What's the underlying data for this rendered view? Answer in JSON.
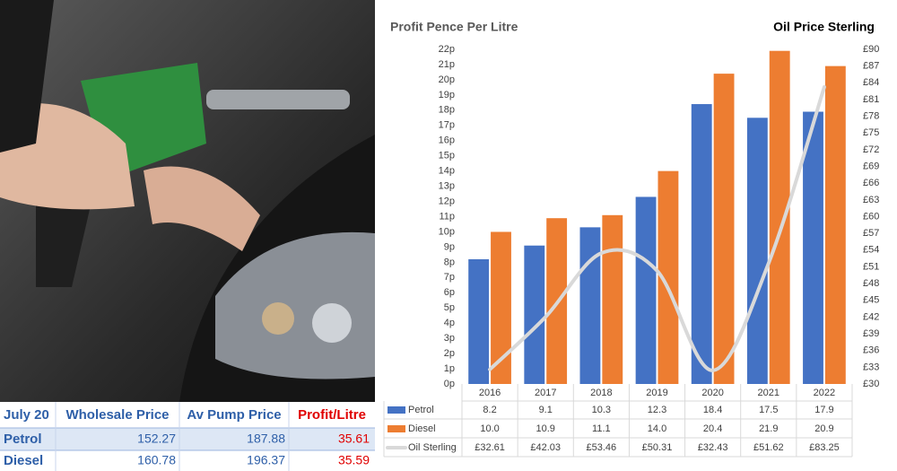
{
  "chart_data": {
    "type": "bar",
    "title": "Profit Pence Per Litre",
    "y2_title": "Oil Price Sterling",
    "categories": [
      "2016",
      "2017",
      "2018",
      "2019",
      "2020",
      "2021",
      "2022"
    ],
    "series": [
      {
        "name": "Petrol",
        "color": "#4472c4",
        "values": [
          8.2,
          9.1,
          10.3,
          12.3,
          18.4,
          17.5,
          17.9
        ],
        "value_labels": [
          "8.2",
          "9.1",
          "10.3",
          "12.3",
          "18.4",
          "17.5",
          "17.9"
        ]
      },
      {
        "name": "Diesel",
        "color": "#ed7d31",
        "values": [
          10.0,
          10.9,
          11.1,
          14.0,
          20.4,
          21.9,
          20.9
        ],
        "value_labels": [
          "10.0",
          "10.9",
          "11.1",
          "14.0",
          "20.4",
          "21.9",
          "20.9"
        ]
      },
      {
        "name": "Oil Sterling",
        "color": "#d9d9d9",
        "type": "line",
        "axis": "y2",
        "values": [
          32.61,
          42.03,
          53.46,
          50.31,
          32.43,
          51.62,
          83.25
        ],
        "value_labels": [
          "£32.61",
          "£42.03",
          "£53.46",
          "£50.31",
          "£32.43",
          "£51.62",
          "£83.25"
        ]
      }
    ],
    "ylim": [
      0,
      22
    ],
    "yticks": [
      {
        "value": 0,
        "label": "0p"
      },
      {
        "value": 1,
        "label": "1p"
      },
      {
        "value": 2,
        "label": "2p"
      },
      {
        "value": 3,
        "label": "3p"
      },
      {
        "value": 4,
        "label": "4p"
      },
      {
        "value": 5,
        "label": "5p"
      },
      {
        "value": 6,
        "label": "6p"
      },
      {
        "value": 7,
        "label": "7p"
      },
      {
        "value": 8,
        "label": "8p"
      },
      {
        "value": 9,
        "label": "9p"
      },
      {
        "value": 10,
        "label": "10p"
      },
      {
        "value": 11,
        "label": "11p"
      },
      {
        "value": 12,
        "label": "12p"
      },
      {
        "value": 13,
        "label": "13p"
      },
      {
        "value": 14,
        "label": "14p"
      },
      {
        "value": 15,
        "label": "15p"
      },
      {
        "value": 16,
        "label": "16p"
      },
      {
        "value": 17,
        "label": "17p"
      },
      {
        "value": 18,
        "label": "18p"
      },
      {
        "value": 19,
        "label": "19p"
      },
      {
        "value": 20,
        "label": "20p"
      },
      {
        "value": 21,
        "label": "21p"
      },
      {
        "value": 22,
        "label": "22p"
      }
    ],
    "y2lim": [
      30,
      90
    ],
    "y2ticks": [
      {
        "value": 30,
        "label": "£30"
      },
      {
        "value": 33,
        "label": "£33"
      },
      {
        "value": 36,
        "label": "£36"
      },
      {
        "value": 39,
        "label": "£39"
      },
      {
        "value": 42,
        "label": "£42"
      },
      {
        "value": 45,
        "label": "£45"
      },
      {
        "value": 48,
        "label": "£48"
      },
      {
        "value": 51,
        "label": "£51"
      },
      {
        "value": 54,
        "label": "£54"
      },
      {
        "value": 57,
        "label": "£57"
      },
      {
        "value": 60,
        "label": "£60"
      },
      {
        "value": 63,
        "label": "£63"
      },
      {
        "value": 66,
        "label": "£66"
      },
      {
        "value": 69,
        "label": "£69"
      },
      {
        "value": 72,
        "label": "£72"
      },
      {
        "value": 75,
        "label": "£75"
      },
      {
        "value": 78,
        "label": "£78"
      },
      {
        "value": 81,
        "label": "£81"
      },
      {
        "value": 84,
        "label": "£84"
      },
      {
        "value": 87,
        "label": "£87"
      },
      {
        "value": 90,
        "label": "£90"
      }
    ]
  },
  "table": {
    "header": [
      "July 20",
      "Wholesale Price",
      "Av Pump Price",
      "Profit/Litre"
    ],
    "rows": [
      [
        "Petrol",
        "152.27",
        "187.88",
        "35.61"
      ],
      [
        "Diesel",
        "160.78",
        "196.37",
        "35.59"
      ]
    ]
  }
}
